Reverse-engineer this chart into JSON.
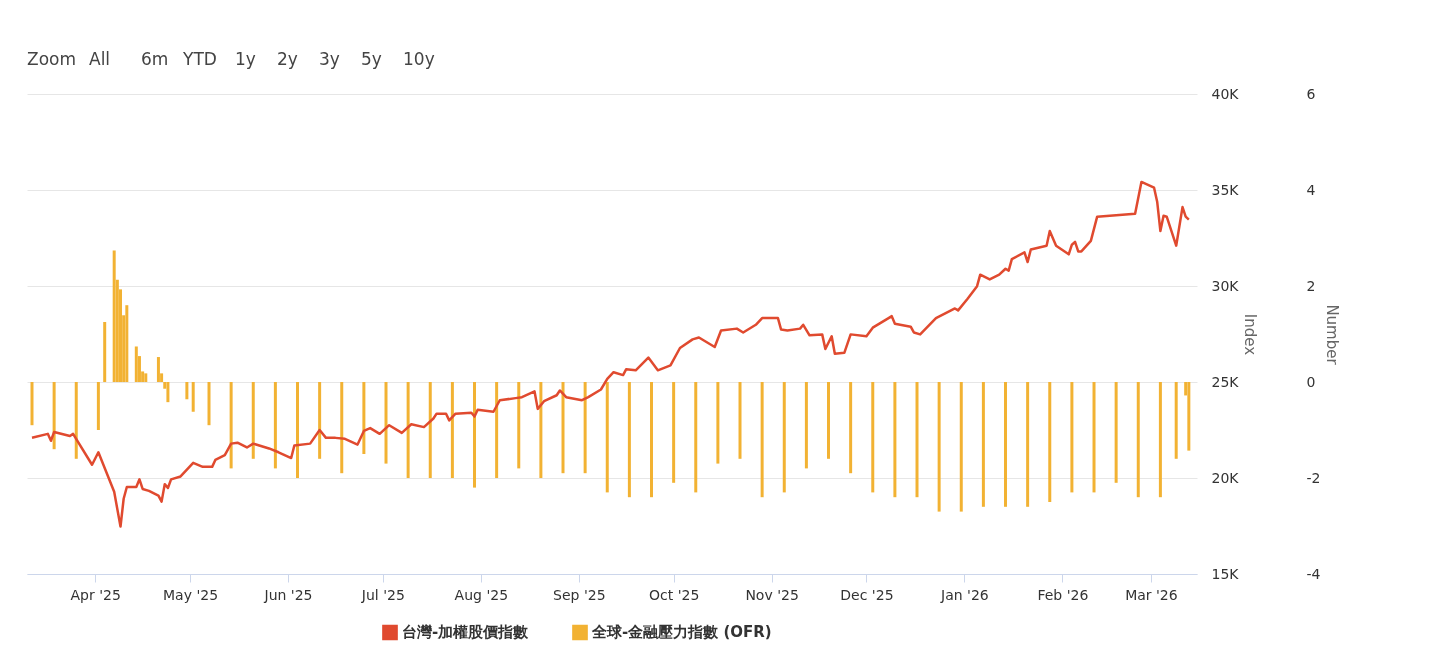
{
  "chart_data": {
    "type": "line",
    "ylabel": "Index",
    "y2label": "Number",
    "annotations": [
      "Zoom",
      "All",
      "6m",
      "YTD",
      "1y",
      "2y",
      "3y",
      "5y",
      "10y"
    ],
    "xlim": [
      "2025-03-12",
      "2026-03-14"
    ],
    "xticks": [
      {
        "value": "2025-04-01",
        "label": "Apr '25"
      },
      {
        "value": "2025-05-01",
        "label": "May '25"
      },
      {
        "value": "2025-06-01",
        "label": "Jun '25"
      },
      {
        "value": "2025-07-01",
        "label": "Jul '25"
      },
      {
        "value": "2025-08-01",
        "label": "Aug '25"
      },
      {
        "value": "2025-09-01",
        "label": "Sep '25"
      },
      {
        "value": "2025-10-01",
        "label": "Oct '25"
      },
      {
        "value": "2025-11-01",
        "label": "Nov '25"
      },
      {
        "value": "2025-12-01",
        "label": "Dec '25"
      },
      {
        "value": "2026-01-01",
        "label": "Jan '26"
      },
      {
        "value": "2026-02-01",
        "label": "Feb '26"
      },
      {
        "value": "2026-03-01",
        "label": "Mar '26"
      }
    ],
    "ylim": [
      15000,
      40000
    ],
    "yticks": [
      {
        "value": 15000,
        "label": "15K"
      },
      {
        "value": 20000,
        "label": "20K"
      },
      {
        "value": 25000,
        "label": "25K"
      },
      {
        "value": 30000,
        "label": "30K"
      },
      {
        "value": 35000,
        "label": "35K"
      },
      {
        "value": 40000,
        "label": "40K"
      }
    ],
    "y2lim": [
      -4,
      6
    ],
    "y2ticks": [
      -4,
      -2,
      0,
      2,
      4,
      6
    ],
    "grid": "y",
    "legend": "bottom",
    "marker": "none",
    "line_style": "solid",
    "series": [
      {
        "name": "台灣-加權股價指數",
        "axis": "y",
        "color": "#e04a2f",
        "x": [
          "2025-03-12",
          "2025-03-17",
          "2025-03-18",
          "2025-03-19",
          "2025-03-24",
          "2025-03-25",
          "2025-03-31",
          "2025-04-02",
          "2025-04-07",
          "2025-04-09",
          "2025-04-10",
          "2025-04-11",
          "2025-04-14",
          "2025-04-15",
          "2025-04-16",
          "2025-04-18",
          "2025-04-21",
          "2025-04-22",
          "2025-04-23",
          "2025-04-24",
          "2025-04-25",
          "2025-04-28",
          "2025-05-02",
          "2025-05-05",
          "2025-05-08",
          "2025-05-09",
          "2025-05-12",
          "2025-05-14",
          "2025-05-16",
          "2025-05-19",
          "2025-05-21",
          "2025-05-26",
          "2025-05-29",
          "2025-06-02",
          "2025-06-03",
          "2025-06-08",
          "2025-06-11",
          "2025-06-13",
          "2025-06-16",
          "2025-06-19",
          "2025-06-23",
          "2025-06-25",
          "2025-06-27",
          "2025-06-30",
          "2025-07-03",
          "2025-07-07",
          "2025-07-10",
          "2025-07-14",
          "2025-07-17",
          "2025-07-18",
          "2025-07-21",
          "2025-07-22",
          "2025-07-24",
          "2025-07-29",
          "2025-07-30",
          "2025-07-31",
          "2025-08-05",
          "2025-08-07",
          "2025-08-12",
          "2025-08-14",
          "2025-08-18",
          "2025-08-19",
          "2025-08-21",
          "2025-08-25",
          "2025-08-26",
          "2025-08-28",
          "2025-09-02",
          "2025-09-04",
          "2025-09-08",
          "2025-09-10",
          "2025-09-12",
          "2025-09-15",
          "2025-09-16",
          "2025-09-19",
          "2025-09-23",
          "2025-09-26",
          "2025-09-30",
          "2025-10-03",
          "2025-10-07",
          "2025-10-09",
          "2025-10-14",
          "2025-10-16",
          "2025-10-21",
          "2025-10-23",
          "2025-10-27",
          "2025-10-29",
          "2025-11-03",
          "2025-11-04",
          "2025-11-06",
          "2025-11-10",
          "2025-11-11",
          "2025-11-13",
          "2025-11-17",
          "2025-11-18",
          "2025-11-20",
          "2025-11-21",
          "2025-11-24",
          "2025-11-26",
          "2025-12-01",
          "2025-12-03",
          "2025-12-08",
          "2025-12-09",
          "2025-12-10",
          "2025-12-15",
          "2025-12-16",
          "2025-12-18",
          "2025-12-23",
          "2025-12-29",
          "2025-12-30",
          "2026-01-02",
          "2026-01-05",
          "2026-01-06",
          "2026-01-09",
          "2026-01-12",
          "2026-01-14",
          "2026-01-15",
          "2026-01-16",
          "2026-01-20",
          "2026-01-21",
          "2026-01-22",
          "2026-01-27",
          "2026-01-28",
          "2026-01-30",
          "2026-02-03",
          "2026-02-04",
          "2026-02-05",
          "2026-02-06",
          "2026-02-07",
          "2026-02-10",
          "2026-02-12",
          "2026-02-24",
          "2026-02-26",
          "2026-03-02",
          "2026-03-03",
          "2026-03-04",
          "2026-03-05",
          "2026-03-06",
          "2026-03-09",
          "2026-03-11",
          "2026-03-12",
          "2026-03-13"
        ],
        "values": [
          22100,
          22300,
          21940,
          22400,
          22190,
          22300,
          20690,
          21340,
          19280,
          17470,
          18920,
          19530,
          19530,
          19930,
          19430,
          19330,
          19080,
          18770,
          19680,
          19480,
          19930,
          20080,
          20790,
          20580,
          20580,
          20940,
          21190,
          21790,
          21840,
          21590,
          21790,
          21540,
          21340,
          21040,
          21690,
          21790,
          22500,
          22090,
          22090,
          22040,
          21740,
          22450,
          22600,
          22300,
          22750,
          22350,
          22800,
          22650,
          23100,
          23350,
          23350,
          23000,
          23350,
          23400,
          23200,
          23550,
          23450,
          24050,
          24160,
          24210,
          24510,
          23600,
          24000,
          24310,
          24560,
          24210,
          24050,
          24210,
          24610,
          25160,
          25510,
          25360,
          25670,
          25610,
          26270,
          25610,
          25870,
          26770,
          27220,
          27320,
          26820,
          27680,
          27780,
          27580,
          27980,
          28330,
          28330,
          27730,
          27680,
          27780,
          27980,
          27430,
          27480,
          26720,
          27380,
          26470,
          26520,
          27480,
          27380,
          27830,
          28330,
          28430,
          28030,
          27880,
          27580,
          27480,
          28330,
          28830,
          28730,
          29340,
          29990,
          30590,
          30340,
          30590,
          30900,
          30800,
          31400,
          31750,
          31250,
          31900,
          32100,
          32860,
          32100,
          31650,
          32150,
          32300,
          31800,
          31800,
          32350,
          33610,
          33760,
          35420,
          35120,
          34370,
          32860,
          33660,
          33610,
          32100,
          34110,
          33610,
          33460
        ]
      },
      {
        "name": "全球-金融壓力指數 (OFR)",
        "type": "bar",
        "axis": "y2",
        "color": "#f2b233",
        "x": [
          "2025-03-12",
          "2025-03-19",
          "2025-03-26",
          "2025-04-02",
          "2025-04-04",
          "2025-04-07",
          "2025-04-08",
          "2025-04-09",
          "2025-04-10",
          "2025-04-11",
          "2025-04-14",
          "2025-04-15",
          "2025-04-16",
          "2025-04-17",
          "2025-04-21",
          "2025-04-22",
          "2025-04-23",
          "2025-04-24",
          "2025-04-30",
          "2025-05-02",
          "2025-05-07",
          "2025-05-14",
          "2025-05-21",
          "2025-05-28",
          "2025-06-04",
          "2025-06-11",
          "2025-06-18",
          "2025-06-25",
          "2025-07-02",
          "2025-07-09",
          "2025-07-16",
          "2025-07-23",
          "2025-07-30",
          "2025-08-06",
          "2025-08-13",
          "2025-08-20",
          "2025-08-27",
          "2025-09-03",
          "2025-09-10",
          "2025-09-17",
          "2025-09-24",
          "2025-10-01",
          "2025-10-08",
          "2025-10-15",
          "2025-10-22",
          "2025-10-29",
          "2025-11-05",
          "2025-11-12",
          "2025-11-19",
          "2025-11-26",
          "2025-12-03",
          "2025-12-10",
          "2025-12-17",
          "2025-12-24",
          "2025-12-31",
          "2026-01-07",
          "2026-01-14",
          "2026-01-21",
          "2026-01-28",
          "2026-02-04",
          "2026-02-11",
          "2026-02-18",
          "2026-02-25",
          "2026-03-04",
          "2026-03-09",
          "2026-03-12",
          "2026-03-13"
        ],
        "values": [
          -0.9,
          -1.4,
          -1.6,
          -1.0,
          1.25,
          2.74,
          2.13,
          1.93,
          1.39,
          1.6,
          0.74,
          0.54,
          0.22,
          0.18,
          0.52,
          0.18,
          -0.14,
          -0.42,
          -0.36,
          -0.62,
          -0.9,
          -1.8,
          -1.6,
          -1.8,
          -2.0,
          -1.6,
          -1.9,
          -1.5,
          -1.7,
          -2.0,
          -2.0,
          -2.0,
          -2.2,
          -2.0,
          -1.8,
          -2.0,
          -1.9,
          -1.9,
          -2.3,
          -2.4,
          -2.4,
          -2.1,
          -2.3,
          -1.7,
          -1.6,
          -2.4,
          -2.3,
          -1.8,
          -1.6,
          -1.9,
          -2.3,
          -2.4,
          -2.4,
          -2.7,
          -2.7,
          -2.6,
          -2.6,
          -2.6,
          -2.5,
          -2.3,
          -2.3,
          -2.1,
          -2.4,
          -2.4,
          -1.6,
          -0.28,
          -1.43
        ]
      }
    ]
  }
}
